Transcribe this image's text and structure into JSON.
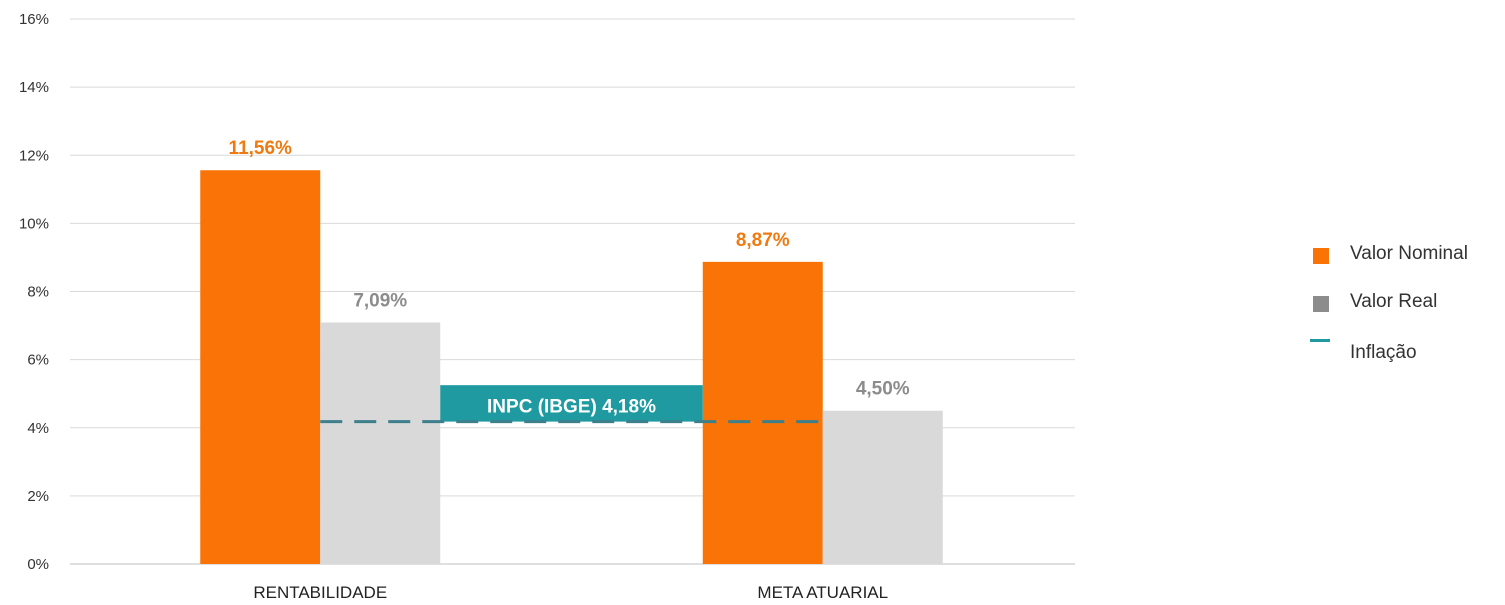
{
  "chart_data": {
    "type": "bar",
    "categories": [
      "RENTABILIDADE",
      "META ATUARIAL"
    ],
    "series": [
      {
        "name": "Valor Nominal",
        "values": [
          11.56,
          8.87
        ],
        "labels": [
          "11,56%",
          "8,87%"
        ],
        "color": "#F97306",
        "label_color": "#F07A10"
      },
      {
        "name": "Valor Real",
        "values": [
          7.09,
          4.5
        ],
        "labels": [
          "7,09%",
          "4,50%"
        ],
        "color": "#D9D9D9",
        "label_color": "#8C8C8C"
      }
    ],
    "reference_line": {
      "name": "Inflação",
      "value": 4.18,
      "label": "INPC (IBGE) 4,18%",
      "color": "#1E9AA0",
      "line_color": "#3E7F8C",
      "style": "dashed"
    },
    "ylim": [
      0,
      16
    ],
    "yticks": [
      0,
      2,
      4,
      6,
      8,
      10,
      12,
      14,
      16
    ],
    "ytick_labels": [
      "0%",
      "2%",
      "4%",
      "6%",
      "8%",
      "10%",
      "12%",
      "14%",
      "16%"
    ],
    "grid": true,
    "legend_position": "right",
    "title": "",
    "xlabel": "",
    "ylabel": ""
  },
  "legend": {
    "items": [
      {
        "label": "Valor Nominal",
        "color": "#F97306",
        "kind": "square"
      },
      {
        "label": "Valor Real",
        "color": "#8C8C8C",
        "kind": "square"
      },
      {
        "label": "Inflação",
        "color": "#1E9AA0",
        "kind": "line"
      }
    ]
  }
}
